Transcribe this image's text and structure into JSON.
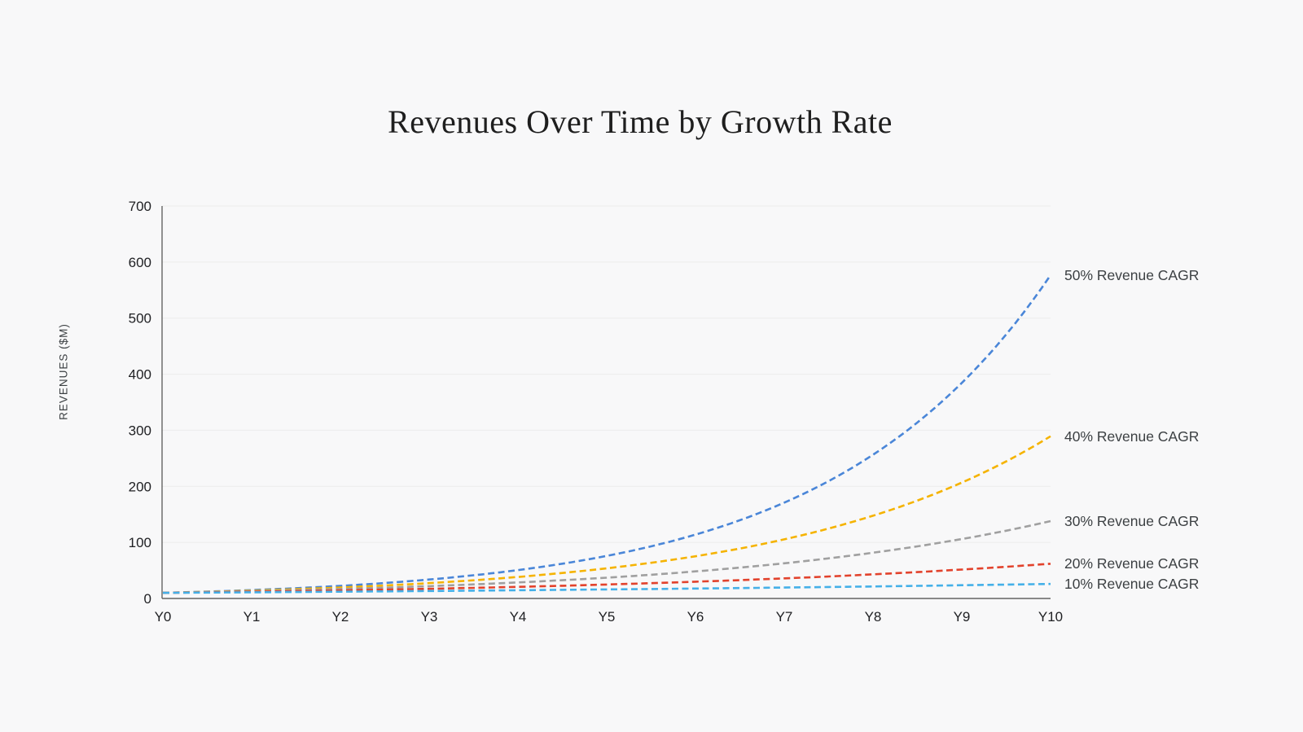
{
  "page": {
    "background_color": "#f8f8f9",
    "text_color": "#3c4043"
  },
  "chart_data": {
    "type": "line",
    "title": "Revenues Over Time by Growth Rate",
    "ylabel": "REVENUES ($M)",
    "xlabel": "",
    "x": [
      "Y0",
      "Y1",
      "Y2",
      "Y3",
      "Y4",
      "Y5",
      "Y6",
      "Y7",
      "Y8",
      "Y9",
      "Y10"
    ],
    "yticks": [
      "0",
      "100",
      "200",
      "300",
      "400",
      "500",
      "600",
      "700"
    ],
    "ylim": [
      0,
      700
    ],
    "ytick_interval": 100,
    "grid": "horizontal-only",
    "grid_color": "#ececec",
    "axis_color": "#636363",
    "line_style": "dashed",
    "legend_position": "right-of-line-ends",
    "start_value_millions": 10,
    "series": [
      {
        "name": "50% Revenue CAGR",
        "cagr_percent": 50,
        "color": "#4a86d8",
        "values": [
          10,
          15,
          22.5,
          33.8,
          50.6,
          75.9,
          113.9,
          170.9,
          256.3,
          384.4,
          576.7
        ]
      },
      {
        "name": "40% Revenue CAGR",
        "cagr_percent": 40,
        "color": "#f5b301",
        "values": [
          10,
          14,
          19.6,
          27.4,
          38.4,
          53.8,
          75.3,
          105.4,
          147.6,
          206.6,
          289.3
        ]
      },
      {
        "name": "30% Revenue CAGR",
        "cagr_percent": 30,
        "color": "#a0a0a0",
        "values": [
          10,
          13,
          16.9,
          22,
          28.6,
          37.1,
          48.3,
          62.7,
          81.6,
          106,
          137.9
        ]
      },
      {
        "name": "20% Revenue CAGR",
        "cagr_percent": 20,
        "color": "#e2422c",
        "values": [
          10,
          12,
          14.4,
          17.3,
          20.7,
          24.9,
          29.9,
          35.8,
          43,
          51.6,
          61.9
        ]
      },
      {
        "name": "10% Revenue CAGR",
        "cagr_percent": 10,
        "color": "#45b0e8",
        "values": [
          10,
          11,
          12.1,
          13.3,
          14.6,
          16.1,
          17.7,
          19.5,
          21.4,
          23.6,
          25.9
        ]
      }
    ]
  }
}
